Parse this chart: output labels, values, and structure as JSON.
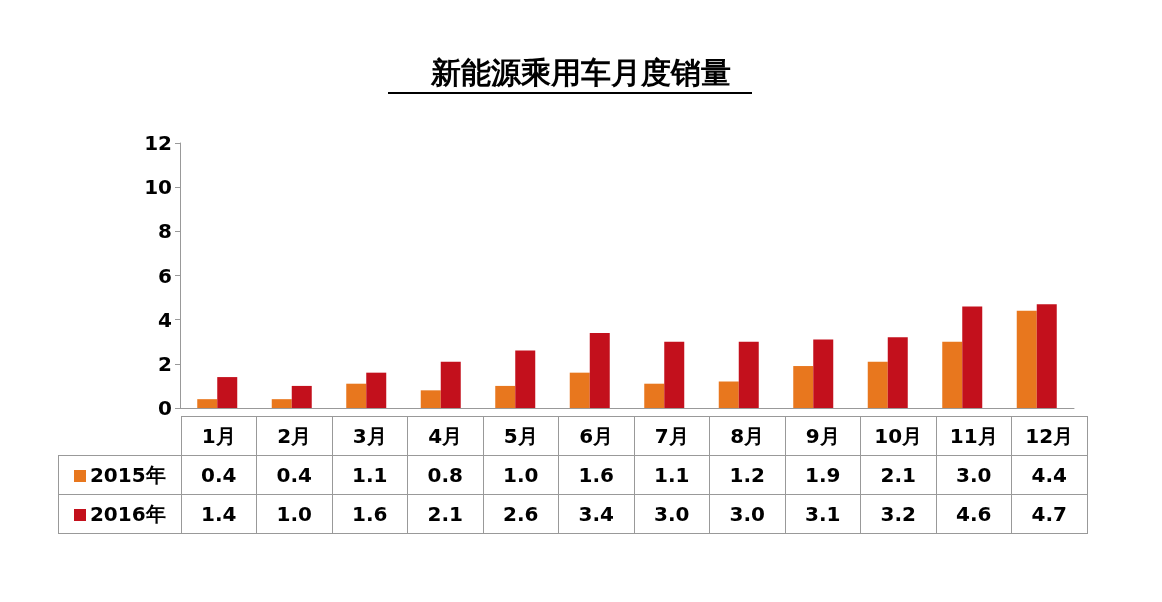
{
  "chart_data": {
    "type": "bar",
    "title": "新能源乘用车月度销量",
    "categories": [
      "1月",
      "2月",
      "3月",
      "4月",
      "5月",
      "6月",
      "7月",
      "8月",
      "9月",
      "10月",
      "11月",
      "12月"
    ],
    "series": [
      {
        "name": "2015年",
        "color": "#e8771e",
        "values": [
          0.4,
          0.4,
          1.1,
          0.8,
          1.0,
          1.6,
          1.1,
          1.2,
          1.9,
          2.1,
          3.0,
          4.4
        ],
        "value_labels": [
          "0.4",
          "0.4",
          "1.1",
          "0.8",
          "1.0",
          "1.6",
          "1.1",
          "1.2",
          "1.9",
          "2.1",
          "3.0",
          "4.4"
        ]
      },
      {
        "name": "2016年",
        "color": "#c3101c",
        "values": [
          1.4,
          1.0,
          1.6,
          2.1,
          2.6,
          3.4,
          3.0,
          3.0,
          3.1,
          3.2,
          4.6,
          4.7
        ],
        "value_labels": [
          "1.4",
          "1.0",
          "1.6",
          "2.1",
          "2.6",
          "3.4",
          "3.0",
          "3.0",
          "3.1",
          "3.2",
          "4.6",
          "4.7"
        ]
      }
    ],
    "ylim": [
      0,
      12
    ],
    "yticks": [
      0,
      2,
      4,
      6,
      8,
      10,
      12
    ],
    "grid": false,
    "legend": "bottom"
  }
}
